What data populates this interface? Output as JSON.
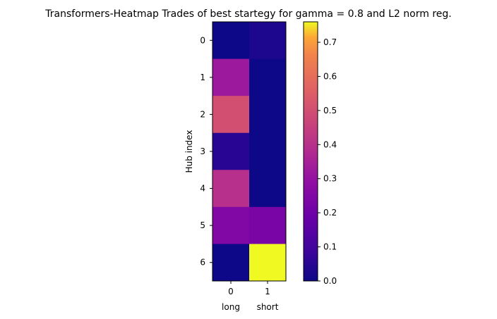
{
  "chart_data": {
    "type": "heatmap",
    "title": "Transformers-Heatmap Trades of best startegy for gamma = 0.8 and L2 norm reg.",
    "ylabel": "Hub index",
    "xlabel": "",
    "x_ticks": [
      "0",
      "1"
    ],
    "x_category_labels": [
      "long",
      "short"
    ],
    "y_ticks": [
      "0",
      "1",
      "2",
      "3",
      "4",
      "5",
      "6"
    ],
    "values": [
      [
        0.0,
        0.03
      ],
      [
        0.32,
        0.0
      ],
      [
        0.5,
        0.0
      ],
      [
        0.05,
        0.0
      ],
      [
        0.4,
        0.0
      ],
      [
        0.25,
        0.23
      ],
      [
        0.0,
        0.76
      ]
    ],
    "colormap": "plasma",
    "colorbar": {
      "min": 0.0,
      "max": 0.76,
      "ticks": [
        0.0,
        0.1,
        0.2,
        0.3,
        0.4,
        0.5,
        0.6,
        0.7
      ],
      "tick_labels": [
        "0.0",
        "0.1",
        "0.2",
        "0.3",
        "0.4",
        "0.5",
        "0.6",
        "0.7"
      ]
    }
  }
}
